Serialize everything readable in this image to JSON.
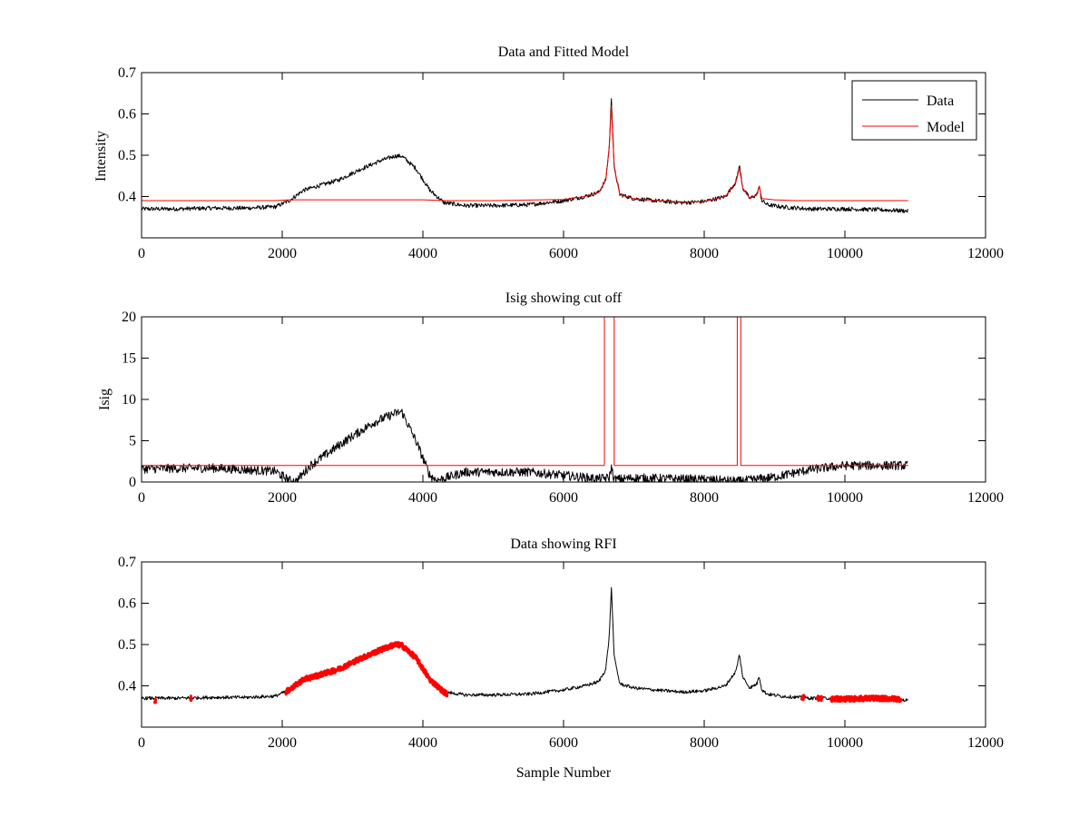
{
  "chart_data": [
    {
      "type": "line",
      "title": "Data and Fitted Model",
      "xlabel": "",
      "ylabel": "Intensity",
      "xlim": [
        0,
        12000
      ],
      "ylim": [
        0.3,
        0.7
      ],
      "xticks": [
        0,
        2000,
        4000,
        6000,
        8000,
        10000,
        12000
      ],
      "xtick_labels": [
        "0",
        "2000",
        "4000",
        "6000",
        "8000",
        "10000",
        "12000"
      ],
      "yticks": [
        0.4,
        0.5,
        0.6,
        0.7
      ],
      "ytick_labels": [
        "0.4",
        "0.5",
        "0.6",
        "0.7"
      ],
      "grid": false,
      "legend": "top-right",
      "series": [
        {
          "name": "Data",
          "color": "#000000",
          "noise": 0.005,
          "x": [
            0,
            500,
            1000,
            1500,
            1900,
            2100,
            2300,
            2500,
            2800,
            3100,
            3400,
            3600,
            3700,
            3900,
            4100,
            4300,
            4600,
            5000,
            5500,
            6000,
            6300,
            6500,
            6600,
            6650,
            6680,
            6720,
            6800,
            6900,
            7000,
            7300,
            7700,
            8000,
            8300,
            8450,
            8500,
            8550,
            8650,
            8750,
            8780,
            8820,
            8900,
            9100,
            9500,
            10000,
            10500,
            10900
          ],
          "y": [
            0.37,
            0.37,
            0.372,
            0.372,
            0.375,
            0.39,
            0.415,
            0.425,
            0.44,
            0.465,
            0.487,
            0.498,
            0.498,
            0.468,
            0.415,
            0.385,
            0.378,
            0.378,
            0.38,
            0.39,
            0.4,
            0.41,
            0.44,
            0.52,
            0.64,
            0.47,
            0.405,
            0.4,
            0.395,
            0.39,
            0.385,
            0.388,
            0.4,
            0.435,
            0.475,
            0.42,
            0.395,
            0.405,
            0.425,
            0.39,
            0.38,
            0.375,
            0.37,
            0.37,
            0.368,
            0.365
          ]
        },
        {
          "name": "Model",
          "color": "#ff0000",
          "noise": 0,
          "x": [
            0,
            1900,
            2100,
            4000,
            4300,
            5000,
            6000,
            6300,
            6500,
            6600,
            6650,
            6680,
            6720,
            6800,
            6900,
            7000,
            7300,
            7700,
            8000,
            8300,
            8450,
            8500,
            8550,
            8650,
            8750,
            8780,
            8820,
            9000,
            9300,
            10900
          ],
          "y": [
            0.39,
            0.39,
            0.392,
            0.392,
            0.39,
            0.39,
            0.393,
            0.4,
            0.41,
            0.44,
            0.52,
            0.62,
            0.47,
            0.405,
            0.4,
            0.395,
            0.39,
            0.387,
            0.388,
            0.4,
            0.435,
            0.468,
            0.42,
            0.395,
            0.405,
            0.425,
            0.395,
            0.392,
            0.39,
            0.39
          ]
        }
      ]
    },
    {
      "type": "line",
      "title": "Isig showing cut off",
      "xlabel": "",
      "ylabel": "Isig",
      "xlim": [
        0,
        12000
      ],
      "ylim": [
        0,
        20
      ],
      "xticks": [
        0,
        2000,
        4000,
        6000,
        8000,
        10000,
        12000
      ],
      "xtick_labels": [
        "0",
        "2000",
        "4000",
        "6000",
        "8000",
        "10000",
        "12000"
      ],
      "yticks": [
        0,
        5,
        10,
        15,
        20
      ],
      "ytick_labels": [
        "0",
        "5",
        "10",
        "15",
        "20"
      ],
      "grid": false,
      "series": [
        {
          "color": "#000000",
          "noise": 0.55,
          "x": [
            0,
            1000,
            1900,
            2100,
            2200,
            2400,
            2600,
            2900,
            3300,
            3600,
            3700,
            3900,
            4100,
            4200,
            4600,
            5500,
            6000,
            6500,
            6650,
            6680,
            6720,
            7000,
            8000,
            8500,
            9000,
            9500,
            10000,
            10500,
            10900
          ],
          "y": [
            1.6,
            1.7,
            1.3,
            0.2,
            0.1,
            2.0,
            3.2,
            5.0,
            7.2,
            8.3,
            8.5,
            5.0,
            0.8,
            0.2,
            1.2,
            1.2,
            0.8,
            0.4,
            0.5,
            1.8,
            0.3,
            0.5,
            0.3,
            0.1,
            0.6,
            1.5,
            2.0,
            2.0,
            2.0
          ]
        },
        {
          "color": "#ff0000",
          "noise": 0,
          "x": [
            0,
            6580,
            6580,
            6720,
            6720,
            8470,
            8470,
            8520,
            8520,
            10900
          ],
          "y": [
            2,
            2,
            20,
            20,
            2,
            2,
            20,
            20,
            2,
            2
          ]
        }
      ]
    },
    {
      "type": "line",
      "title": "Data showing RFI",
      "xlabel": "Sample Number",
      "ylabel": "",
      "xlim": [
        0,
        12000
      ],
      "ylim": [
        0.3,
        0.7
      ],
      "xticks": [
        0,
        2000,
        4000,
        6000,
        8000,
        10000,
        12000
      ],
      "xtick_labels": [
        "0",
        "2000",
        "4000",
        "6000",
        "8000",
        "10000",
        "12000"
      ],
      "yticks": [
        0.4,
        0.5,
        0.6,
        0.7
      ],
      "ytick_labels": [
        "0.4",
        "0.5",
        "0.6",
        "0.7"
      ],
      "grid": false,
      "series": [
        {
          "color": "#000000",
          "noise": 0.004,
          "x": [
            0,
            500,
            1000,
            1500,
            1900,
            2100,
            2300,
            2500,
            2800,
            3100,
            3400,
            3600,
            3700,
            3900,
            4100,
            4300,
            4600,
            5000,
            5500,
            6000,
            6300,
            6500,
            6600,
            6650,
            6680,
            6720,
            6800,
            6900,
            7000,
            7300,
            7700,
            8000,
            8300,
            8450,
            8500,
            8550,
            8650,
            8750,
            8780,
            8820,
            8900,
            9100,
            9500,
            10000,
            10500,
            10900
          ],
          "y": [
            0.37,
            0.37,
            0.372,
            0.372,
            0.375,
            0.39,
            0.415,
            0.425,
            0.44,
            0.465,
            0.487,
            0.498,
            0.498,
            0.468,
            0.415,
            0.385,
            0.378,
            0.378,
            0.38,
            0.39,
            0.4,
            0.41,
            0.44,
            0.52,
            0.64,
            0.47,
            0.405,
            0.4,
            0.395,
            0.39,
            0.385,
            0.388,
            0.4,
            0.435,
            0.475,
            0.42,
            0.395,
            0.405,
            0.425,
            0.39,
            0.38,
            0.375,
            0.37,
            0.37,
            0.368,
            0.365
          ]
        },
        {
          "color": "#ff0000",
          "noise": 0.006,
          "segments": [
            {
              "x": [
                180,
                200
              ],
              "y": [
                0.365,
                0.365
              ]
            },
            {
              "x": [
                690,
                710
              ],
              "y": [
                0.37,
                0.37
              ]
            },
            {
              "x": [
                2050,
                2100,
                2300,
                2500,
                2800,
                3100,
                3400,
                3600,
                3700,
                3900,
                4100,
                4300,
                4350
              ],
              "y": [
                0.385,
                0.39,
                0.415,
                0.425,
                0.44,
                0.465,
                0.487,
                0.5,
                0.498,
                0.468,
                0.415,
                0.385,
                0.38
              ]
            },
            {
              "x": [
                9380,
                9420
              ],
              "y": [
                0.372,
                0.372
              ]
            },
            {
              "x": [
                9600,
                9680
              ],
              "y": [
                0.37,
                0.37
              ]
            },
            {
              "x": [
                9800,
                10000,
                10400,
                10800
              ],
              "y": [
                0.368,
                0.368,
                0.37,
                0.368
              ]
            }
          ]
        }
      ]
    }
  ]
}
